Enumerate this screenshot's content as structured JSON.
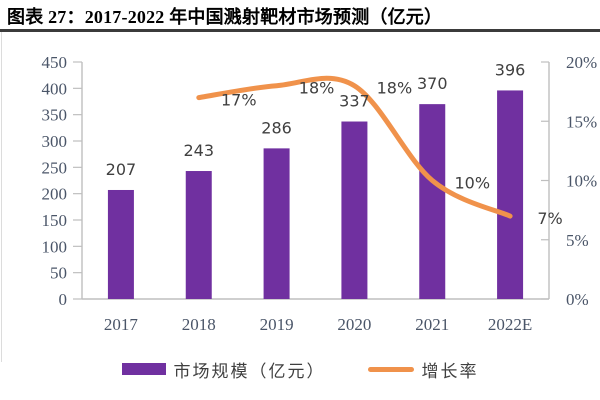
{
  "title": "图表 27：2017-2022 年中国溅射靶材市场预测（亿元）",
  "colors": {
    "bar": "#7030A0",
    "line": "#F0924B",
    "data_label": "#404040",
    "axis_label": "#4A5568",
    "axis_line": "#BFBFBF",
    "title_rule": "#3B3B3B"
  },
  "chart_data": {
    "type": "bar",
    "subtype": "combo-bar-line",
    "categories": [
      "2017",
      "2018",
      "2019",
      "2020",
      "2021",
      "2022E"
    ],
    "series": [
      {
        "name": "市场规模（亿元）",
        "type": "bar",
        "axis": "left",
        "color": "#7030A0",
        "values": [
          207,
          243,
          286,
          337,
          370,
          396
        ],
        "labels": [
          "207",
          "243",
          "286",
          "337",
          "370",
          "396"
        ]
      },
      {
        "name": "增长率",
        "type": "line",
        "axis": "right",
        "color": "#F0924B",
        "values": [
          null,
          17,
          18,
          18,
          10,
          7
        ],
        "labels": [
          null,
          "17%",
          "18%",
          "18%",
          "10%",
          "7%"
        ]
      }
    ],
    "left_axis": {
      "min": 0,
      "max": 450,
      "step": 50,
      "ticks": [
        "450",
        "400",
        "350",
        "300",
        "250",
        "200",
        "150",
        "100",
        "50",
        "0"
      ]
    },
    "right_axis": {
      "min": 0,
      "max": 20,
      "step": 5,
      "ticks": [
        "20%",
        "15%",
        "10%",
        "5%",
        "0%"
      ]
    },
    "legend": [
      {
        "label": "市场规模（亿元）",
        "shape": "rect",
        "color": "#7030A0"
      },
      {
        "label": "增长率",
        "shape": "line",
        "color": "#F0924B"
      }
    ],
    "legend_position": "bottom",
    "grid": false
  }
}
